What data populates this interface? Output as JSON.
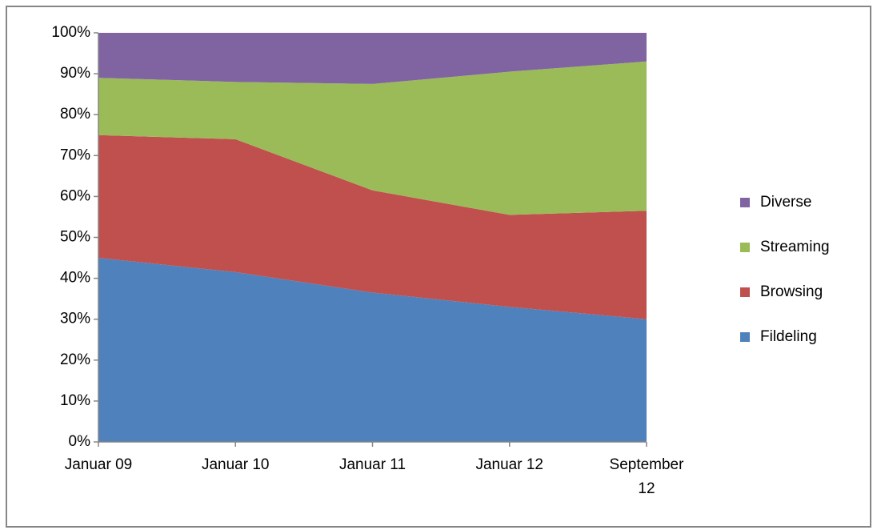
{
  "chart_data": {
    "type": "stacked_area",
    "categories": [
      "Januar 09",
      "Januar 10",
      "Januar 11",
      "Januar 12",
      "September 12"
    ],
    "series": [
      {
        "name": "Fildeling",
        "color": "#4f81bd",
        "values": [
          45,
          41.5,
          36.5,
          33,
          30
        ]
      },
      {
        "name": "Browsing",
        "color": "#c0504d",
        "values": [
          30,
          32.5,
          25,
          22.5,
          26.5
        ]
      },
      {
        "name": "Streaming",
        "color": "#9bbb59",
        "values": [
          14,
          14,
          26,
          35,
          36.5
        ]
      },
      {
        "name": "Diverse",
        "color": "#8064a2",
        "values": [
          11,
          12,
          12.5,
          9.5,
          7
        ]
      }
    ],
    "ylim": [
      0,
      100
    ],
    "yticks": [
      {
        "value": 0,
        "label": "0%"
      },
      {
        "value": 10,
        "label": "10%"
      },
      {
        "value": 20,
        "label": "20%"
      },
      {
        "value": 30,
        "label": "30%"
      },
      {
        "value": 40,
        "label": "40%"
      },
      {
        "value": 50,
        "label": "50%"
      },
      {
        "value": 60,
        "label": "60%"
      },
      {
        "value": 70,
        "label": "70%"
      },
      {
        "value": 80,
        "label": "80%"
      },
      {
        "value": 90,
        "label": "90%"
      },
      {
        "value": 100,
        "label": "100%"
      }
    ],
    "legend": "right"
  }
}
